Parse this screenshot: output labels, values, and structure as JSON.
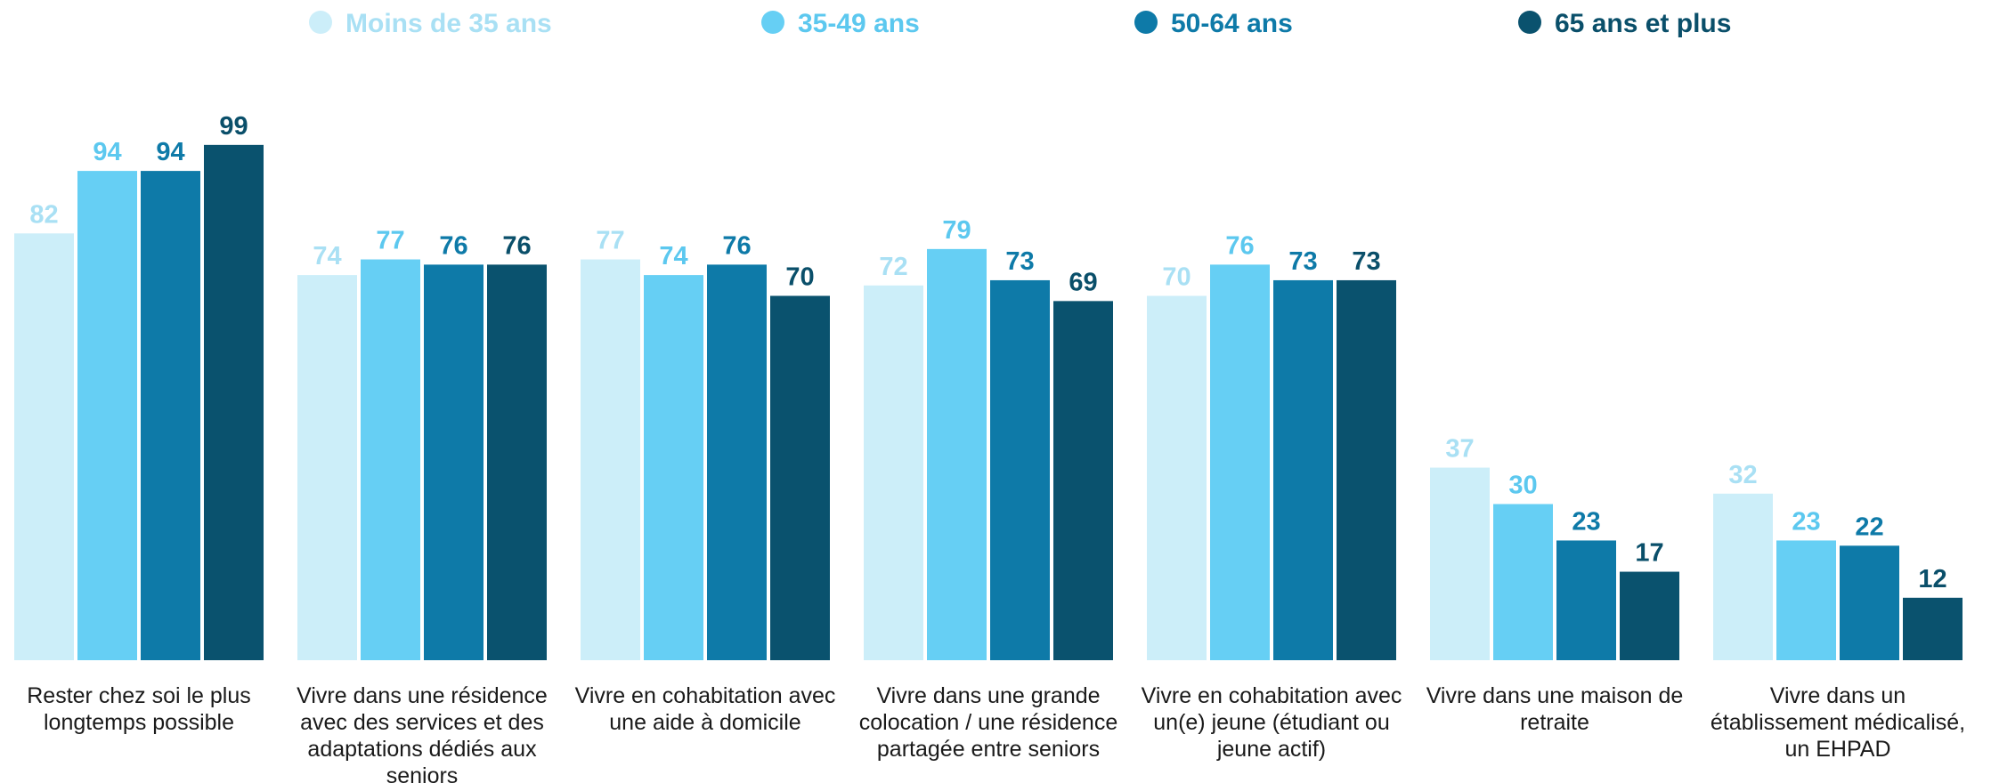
{
  "chart_data": {
    "type": "bar",
    "title": "",
    "xlabel": "",
    "ylabel": "",
    "ylim": [
      0,
      100
    ],
    "grid": false,
    "legend_position": "top",
    "categories": [
      [
        "Rester chez soi le plus",
        "longtemps possible"
      ],
      [
        "Vivre dans une résidence",
        "avec des services et des",
        "adaptations dédiés aux",
        "seniors"
      ],
      [
        "Vivre en cohabitation avec",
        "une aide à domicile"
      ],
      [
        "Vivre dans une grande",
        "colocation / une résidence",
        "partagée entre seniors"
      ],
      [
        "Vivre en cohabitation avec",
        "un(e) jeune (étudiant ou",
        "jeune actif)"
      ],
      [
        "Vivre dans une maison de",
        "retraite"
      ],
      [
        "Vivre dans un",
        "établissement médicalisé,",
        "un EHPAD"
      ]
    ],
    "series": [
      {
        "name": "Moins de 35 ans",
        "color": "#cceef9",
        "label_color": "#a9e0f4",
        "values": [
          82,
          74,
          77,
          72,
          70,
          37,
          32
        ]
      },
      {
        "name": "35-49 ans",
        "color": "#66cff4",
        "label_color": "#5cc8ef",
        "values": [
          94,
          77,
          74,
          79,
          76,
          30,
          23
        ]
      },
      {
        "name": "50-64 ans",
        "color": "#0e7aa8",
        "label_color": "#0e7aa8",
        "values": [
          94,
          76,
          76,
          73,
          73,
          23,
          22
        ]
      },
      {
        "name": "65 ans et plus",
        "color": "#0a526e",
        "label_color": "#0a4f6a",
        "values": [
          99,
          76,
          70,
          69,
          73,
          17,
          12
        ]
      }
    ]
  }
}
